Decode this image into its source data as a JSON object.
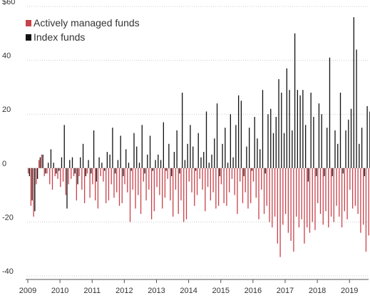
{
  "chart_data": {
    "type": "bar",
    "y_unit_prefix": "$",
    "y_ticks": [
      60,
      40,
      20,
      0,
      -20,
      -40
    ],
    "ylim": [
      -40,
      60
    ],
    "x_ticks": [
      "2009",
      "2010",
      "2011",
      "2012",
      "2013",
      "2014",
      "2015",
      "2016",
      "2017",
      "2018",
      "2019"
    ],
    "x_start": "2009-01",
    "grid": true,
    "legend_position": "top-left",
    "colors": {
      "active": "#c8424a",
      "index": "#111111",
      "grid": "#cccccc",
      "axis": "#555555",
      "text": "#333333"
    },
    "series": [
      {
        "name": "Actively managed funds",
        "key": "active",
        "values": [
          -2,
          -14,
          -18,
          -6,
          3,
          5,
          -3,
          -2,
          -6,
          -8,
          -3,
          -4,
          -7,
          -5,
          -10,
          -6,
          -4,
          -3,
          -12,
          -3,
          -8,
          -13,
          -2,
          -11,
          -6,
          -12,
          -15,
          -3,
          -5,
          -13,
          -12,
          -6,
          -11,
          -9,
          -14,
          -13,
          -6,
          -9,
          -20,
          -8,
          -15,
          -10,
          -17,
          -5,
          -12,
          -8,
          -19,
          -16,
          -7,
          -10,
          -15,
          -11,
          -4,
          -12,
          -18,
          -8,
          -17,
          -12,
          -20,
          -19,
          -5,
          -9,
          -14,
          -10,
          -4,
          -8,
          -16,
          -7,
          -12,
          -9,
          -15,
          -14,
          -6,
          -13,
          -14,
          -9,
          -4,
          -10,
          -17,
          -5,
          -13,
          -9,
          -15,
          -13,
          -5,
          -11,
          -19,
          -8,
          -17,
          -14,
          -20,
          -22,
          -18,
          -28,
          -33,
          -21,
          -17,
          -24,
          -27,
          -31,
          -18,
          -22,
          -19,
          -28,
          -22,
          -24,
          -20,
          -23,
          -13,
          -17,
          -21,
          -16,
          -22,
          -18,
          -20,
          -14,
          -18,
          -22,
          -16,
          -19,
          -8,
          -15,
          -14,
          -17,
          -24,
          -21,
          -31,
          -25,
          -18,
          -23,
          -20,
          -24,
          -19,
          -24,
          -18
        ]
      },
      {
        "name": "Index funds",
        "key": "index",
        "values": [
          -3,
          -12,
          -16,
          -4,
          4,
          5,
          -2,
          2,
          7,
          2,
          -2,
          -1,
          4,
          16,
          -15,
          3,
          4,
          -2,
          -6,
          4,
          9,
          -3,
          3,
          -2,
          14,
          -5,
          4,
          2,
          -1,
          6,
          5,
          15,
          -2,
          3,
          12,
          -3,
          7,
          2,
          -1,
          13,
          8,
          2,
          16,
          -2,
          5,
          12,
          -1,
          3,
          5,
          3,
          17,
          -1,
          9,
          -3,
          6,
          14,
          -2,
          28,
          3,
          9,
          16,
          8,
          -1,
          13,
          4,
          6,
          21,
          2,
          5,
          11,
          24,
          -3,
          9,
          15,
          2,
          20,
          4,
          16,
          27,
          25,
          -3,
          8,
          15,
          -1,
          19,
          11,
          7,
          29,
          -2,
          20,
          22,
          13,
          19,
          33,
          28,
          13,
          37,
          29,
          14,
          50,
          29,
          27,
          29,
          16,
          -5,
          28,
          19,
          -3,
          24,
          20,
          -3,
          15,
          41,
          -3,
          14,
          9,
          28,
          -2,
          14,
          18,
          22,
          56,
          44,
          9,
          15,
          -3,
          23,
          21,
          -2,
          19,
          29,
          -1,
          10,
          -1,
          -2
        ]
      }
    ]
  }
}
